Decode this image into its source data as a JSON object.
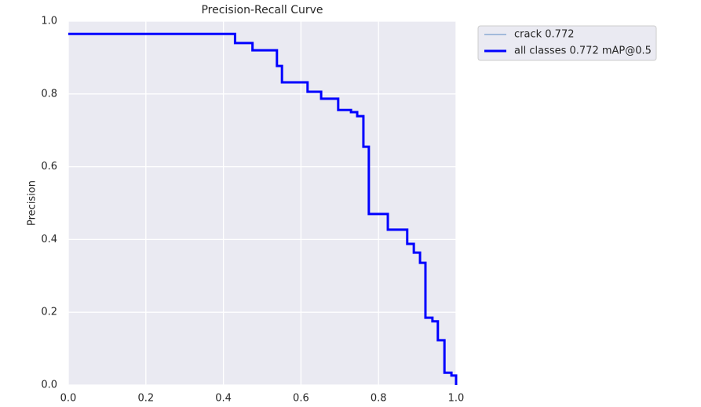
{
  "chart_data": {
    "type": "line",
    "title": "Precision-Recall Curve",
    "y_label": "Precision",
    "x": [
      0,
      0.43,
      0.43,
      0.475,
      0.475,
      0.538,
      0.538,
      0.551,
      0.551,
      0.617,
      0.617,
      0.652,
      0.652,
      0.696,
      0.696,
      0.729,
      0.729,
      0.745,
      0.745,
      0.761,
      0.761,
      0.775,
      0.775,
      0.824,
      0.824,
      0.874,
      0.874,
      0.891,
      0.891,
      0.907,
      0.907,
      0.921,
      0.921,
      0.939,
      0.939,
      0.953,
      0.953,
      0.97,
      0.97,
      0.988,
      0.988,
      1.0,
      1.0
    ],
    "series": [
      {
        "name": "crack 0.772",
        "color": "#5b8ac4",
        "line_width": 1,
        "values": [
          0.965,
          0.965,
          0.94,
          0.94,
          0.92,
          0.92,
          0.877,
          0.877,
          0.832,
          0.832,
          0.806,
          0.806,
          0.787,
          0.787,
          0.756,
          0.756,
          0.75,
          0.75,
          0.739,
          0.739,
          0.655,
          0.655,
          0.47,
          0.47,
          0.427,
          0.427,
          0.388,
          0.388,
          0.364,
          0.364,
          0.336,
          0.336,
          0.185,
          0.185,
          0.175,
          0.175,
          0.123,
          0.123,
          0.034,
          0.034,
          0.026,
          0.026,
          0.0
        ]
      },
      {
        "name": "all classes 0.772 mAP@0.5",
        "color": "#0000ff",
        "line_width": 3,
        "values": [
          0.965,
          0.965,
          0.94,
          0.94,
          0.92,
          0.92,
          0.877,
          0.877,
          0.832,
          0.832,
          0.806,
          0.806,
          0.787,
          0.787,
          0.756,
          0.756,
          0.75,
          0.75,
          0.739,
          0.739,
          0.655,
          0.655,
          0.47,
          0.47,
          0.427,
          0.427,
          0.388,
          0.388,
          0.364,
          0.364,
          0.336,
          0.336,
          0.185,
          0.185,
          0.175,
          0.175,
          0.123,
          0.123,
          0.034,
          0.034,
          0.026,
          0.026,
          0.0
        ]
      }
    ],
    "xlim": [
      0,
      1
    ],
    "ylim": [
      0,
      1
    ],
    "xticks": [
      {
        "value": 0,
        "label": "0.0"
      },
      0.2,
      0.4,
      0.6,
      0.8,
      {
        "value": 1,
        "label": "1.0"
      }
    ],
    "yticks": [
      {
        "value": 0,
        "label": "0.0"
      },
      0.2,
      0.4,
      0.6,
      0.8,
      {
        "value": 1,
        "label": "1.0"
      }
    ],
    "grid": true,
    "legend": "outside-upper-right",
    "background": "#eaeaf2"
  }
}
